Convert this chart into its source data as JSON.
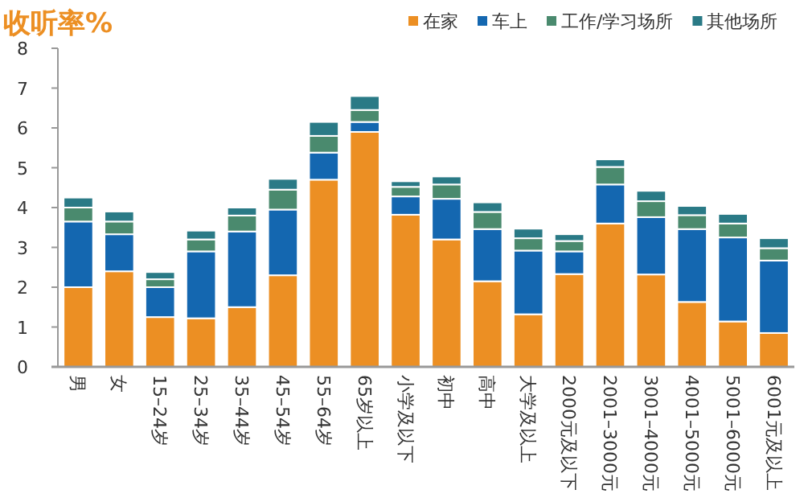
{
  "chart_data": {
    "type": "bar",
    "stacked": true,
    "title": "收听率%",
    "legend": "top right",
    "ylim": [
      0,
      8
    ],
    "yticks": [
      0,
      1,
      2,
      3,
      4,
      5,
      6,
      7,
      8
    ],
    "categories": [
      "男",
      "女",
      "15–24岁",
      "25–34岁",
      "35–44岁",
      "45–54岁",
      "55–64岁",
      "65岁以上",
      "小学及以下",
      "初中",
      "高中",
      "大学及以上",
      "2000元及以下",
      "2001–3000元",
      "3001–4000元",
      "4001–5000元",
      "5001–6000元",
      "6001元及以上"
    ],
    "series": [
      {
        "name": "在家",
        "color": "#ec8f23",
        "values": [
          2.0,
          2.4,
          1.25,
          1.22,
          1.5,
          2.3,
          4.7,
          5.9,
          3.82,
          3.2,
          2.15,
          1.32,
          2.33,
          3.6,
          2.32,
          1.63,
          1.14,
          0.85
        ]
      },
      {
        "name": "车上",
        "color": "#1467b0",
        "values": [
          1.65,
          0.93,
          0.75,
          1.68,
          1.9,
          1.65,
          0.68,
          0.25,
          0.46,
          1.02,
          1.31,
          1.6,
          0.57,
          0.98,
          1.44,
          1.83,
          2.11,
          1.82
        ]
      },
      {
        "name": "工作/学习场所",
        "color": "#4a8a6e",
        "values": [
          0.35,
          0.32,
          0.2,
          0.3,
          0.4,
          0.5,
          0.42,
          0.3,
          0.24,
          0.36,
          0.43,
          0.31,
          0.26,
          0.44,
          0.4,
          0.35,
          0.35,
          0.31
        ]
      },
      {
        "name": "其他场所",
        "color": "#2a7a86",
        "values": [
          0.25,
          0.25,
          0.18,
          0.22,
          0.2,
          0.27,
          0.35,
          0.35,
          0.14,
          0.2,
          0.24,
          0.24,
          0.17,
          0.19,
          0.26,
          0.23,
          0.24,
          0.25
        ]
      }
    ]
  }
}
